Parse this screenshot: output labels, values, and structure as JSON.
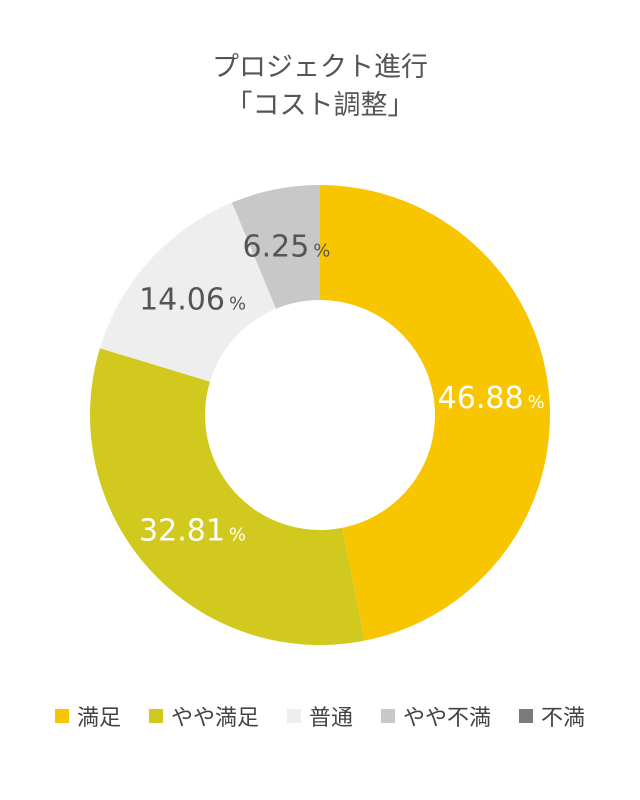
{
  "chart_data": {
    "type": "pie",
    "title_lines": [
      "プロジェクト進行",
      "「コスト調整」"
    ],
    "categories": [
      "満足",
      "やや満足",
      "普通",
      "やや不満",
      "不満"
    ],
    "values": [
      46.88,
      32.81,
      14.06,
      6.25,
      0
    ],
    "value_labels": [
      "46.88",
      "32.81",
      "14.06",
      "6.25",
      ""
    ],
    "unit": "%",
    "colors": [
      "#F8C600",
      "#D2C91E",
      "#EEEEEE",
      "#C8C8C8",
      "#7A7A7A"
    ],
    "label_colors": [
      "#FFFFFF",
      "#FFFFFF",
      "#555555",
      "#555555",
      "#555555"
    ],
    "legend_position": "bottom"
  }
}
